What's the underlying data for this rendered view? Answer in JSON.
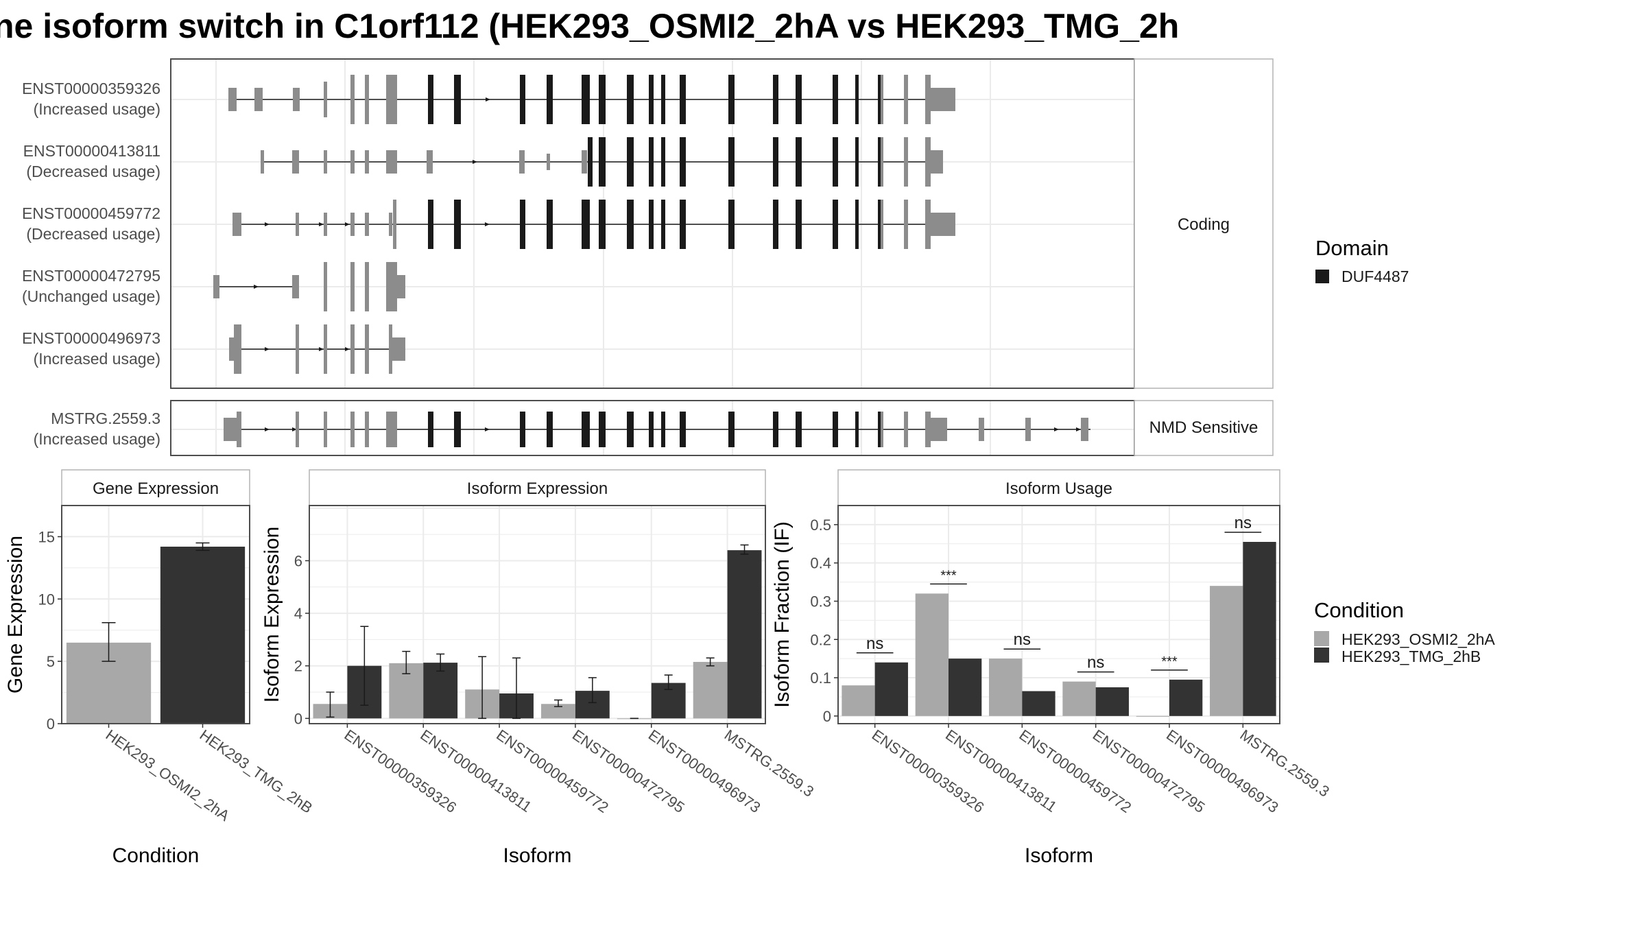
{
  "title": "ne isoform switch in C1orf112 (HEK293_OSMI2_2hA vs HEK293_TMG_2h",
  "colors": {
    "exon_other": "#8c8c8c",
    "exon_domain": "#1a1a1a",
    "cond_a": "#a8a8a8",
    "cond_b": "#333333",
    "panel_border": "#4d4d4d",
    "strip_border": "#b3b3b3",
    "grid": "#ebebeb"
  },
  "transcripts": {
    "facets": [
      {
        "label": "Coding",
        "rows": [
          0,
          1,
          2,
          3,
          4
        ]
      },
      {
        "label": "NMD Sensitive",
        "rows": [
          5
        ]
      }
    ],
    "rows": [
      {
        "id": "ENST00000359326",
        "usage": "(Increased usage)"
      },
      {
        "id": "ENST00000413811",
        "usage": "(Decreased usage)"
      },
      {
        "id": "ENST00000459772",
        "usage": "(Decreased usage)"
      },
      {
        "id": "ENST00000472795",
        "usage": "(Unchanged usage)"
      },
      {
        "id": "ENST00000496973",
        "usage": "(Increased usage)"
      },
      {
        "id": "MSTRG.2559.3",
        "usage": "(Increased usage)"
      }
    ]
  },
  "legend_domain": {
    "title": "Domain",
    "entries": [
      {
        "label": "DUF4487",
        "color": "#1a1a1a"
      }
    ]
  },
  "legend_condition": {
    "title": "Condition",
    "entries": [
      {
        "label": "HEK293_OSMI2_2hA",
        "color": "#a8a8a8"
      },
      {
        "label": "HEK293_TMG_2hB",
        "color": "#333333"
      }
    ]
  },
  "chart_data": [
    {
      "type": "bar",
      "title": "Gene Expression",
      "xlabel": "Condition",
      "ylabel": "Gene Expression",
      "ylim": [
        0,
        17.5
      ],
      "yticks": [
        0,
        5,
        10,
        15
      ],
      "categories": [
        "HEK293_OSMI2_2hA",
        "HEK293_TMG_2hB"
      ],
      "values": [
        6.5,
        14.2
      ],
      "error_low": [
        5.0,
        13.9
      ],
      "error_high": [
        8.1,
        14.5
      ]
    },
    {
      "type": "bar",
      "title": "Isoform Expression",
      "xlabel": "Isoform",
      "ylabel": "Isoform Expression",
      "ylim": [
        -0.2,
        8.1
      ],
      "yticks": [
        0,
        2,
        4,
        6
      ],
      "categories": [
        "ENST00000359326",
        "ENST00000413811",
        "ENST00000459772",
        "ENST00000472795",
        "ENST00000496973",
        "MSTRG.2559.3"
      ],
      "series": [
        {
          "name": "HEK293_OSMI2_2hA",
          "values": [
            0.55,
            2.1,
            1.1,
            0.55,
            0.0,
            2.15
          ],
          "error_low": [
            0.05,
            1.7,
            0.0,
            0.45,
            0.0,
            2.0
          ],
          "error_high": [
            1.0,
            2.55,
            2.35,
            0.7,
            0.0,
            2.3
          ]
        },
        {
          "name": "HEK293_TMG_2hB",
          "values": [
            2.0,
            2.12,
            0.95,
            1.05,
            1.35,
            6.4
          ],
          "error_low": [
            0.5,
            1.8,
            0.0,
            0.6,
            1.1,
            6.25
          ],
          "error_high": [
            3.5,
            2.45,
            2.3,
            1.55,
            1.65,
            6.6
          ]
        }
      ]
    },
    {
      "type": "bar",
      "title": "Isoform Usage",
      "xlabel": "Isoform",
      "ylabel": "Isoform Fraction (IF)",
      "ylim": [
        -0.02,
        0.55
      ],
      "yticks": [
        0.0,
        0.1,
        0.2,
        0.3,
        0.4,
        0.5
      ],
      "categories": [
        "ENST00000359326",
        "ENST00000413811",
        "ENST00000459772",
        "ENST00000472795",
        "ENST00000496973",
        "MSTRG.2559.3"
      ],
      "series": [
        {
          "name": "HEK293_OSMI2_2hA",
          "values": [
            0.08,
            0.32,
            0.15,
            0.09,
            0.0,
            0.34
          ]
        },
        {
          "name": "HEK293_TMG_2hB",
          "values": [
            0.14,
            0.15,
            0.065,
            0.075,
            0.095,
            0.455
          ]
        }
      ],
      "annotations": [
        {
          "text": "ns",
          "y": 0.165
        },
        {
          "text": "***",
          "y": 0.345
        },
        {
          "text": "ns",
          "y": 0.175
        },
        {
          "text": "ns",
          "y": 0.115
        },
        {
          "text": "***",
          "y": 0.12
        },
        {
          "text": "ns",
          "y": 0.48
        }
      ]
    }
  ]
}
